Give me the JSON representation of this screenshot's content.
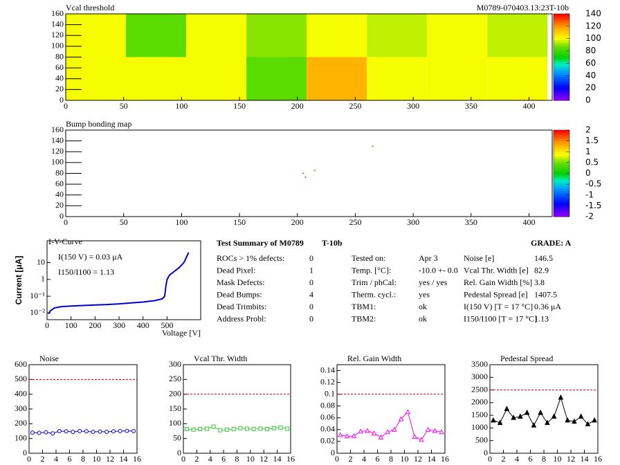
{
  "chart_data": [
    {
      "type": "heatmap",
      "title": "Vcal threshold",
      "subtitle": "M0789-070403.13:23T-10b",
      "x_edges": [
        0,
        52,
        104,
        156,
        208,
        260,
        312,
        364,
        416
      ],
      "y_edges": [
        0,
        80,
        160
      ],
      "values": [
        [
          100,
          100,
          100,
          85,
          115,
          100,
          100,
          100
        ],
        [
          100,
          85,
          100,
          90,
          100,
          95,
          100,
          95
        ]
      ],
      "xlim": [
        0,
        420
      ],
      "ylim": [
        0,
        160
      ],
      "xticks": [
        0,
        50,
        100,
        150,
        200,
        250,
        300,
        350,
        400
      ],
      "yticks": [
        0,
        20,
        40,
        60,
        80,
        100,
        120,
        140,
        160
      ],
      "zlim": [
        0,
        140
      ],
      "zticks": [
        0,
        20,
        40,
        60,
        80,
        100,
        120,
        140
      ]
    },
    {
      "type": "scatter",
      "title": "Bump bonding map",
      "x": [
        205,
        207,
        215,
        265
      ],
      "values": [
        80,
        73,
        85,
        130
      ],
      "color": "#33cc33",
      "xlim": [
        0,
        420
      ],
      "ylim": [
        0,
        160
      ],
      "xticks": [
        0,
        50,
        100,
        150,
        200,
        250,
        300,
        350,
        400
      ],
      "yticks": [
        0,
        20,
        40,
        60,
        80,
        100,
        120,
        140,
        160
      ],
      "zlim": [
        -2,
        2
      ],
      "zticks": [
        -2,
        -1.5,
        -1,
        -0.5,
        0,
        0.5,
        1,
        1.5,
        2
      ]
    },
    {
      "type": "line",
      "title": "I-V-Curve",
      "log_y": true,
      "color": "#0000cc",
      "xlabel": "Voltage [V]",
      "ylabel": "Current [μA]",
      "annotations": [
        "I(150 V) = 0.03 μA",
        "I150/I100 =  1.13"
      ],
      "x": [
        5,
        15,
        30,
        60,
        100,
        150,
        200,
        250,
        300,
        350,
        400,
        450,
        480,
        490,
        495,
        500,
        510,
        530,
        550,
        570,
        590
      ],
      "values": [
        0.009,
        0.014,
        0.02,
        0.024,
        0.026,
        0.028,
        0.03,
        0.032,
        0.035,
        0.04,
        0.045,
        0.055,
        0.07,
        0.1,
        0.4,
        1.0,
        1.8,
        3.0,
        5.0,
        10.0,
        40.0
      ],
      "xlim": [
        0,
        640
      ],
      "ylim": [
        0.004,
        200
      ],
      "xticks": [
        0,
        100,
        200,
        300,
        400,
        500
      ],
      "yticks": [
        {
          "value": 0.01,
          "label": "10⁻²"
        },
        {
          "value": 0.1,
          "label": "10⁻¹"
        },
        1,
        10
      ]
    },
    {
      "type": "line",
      "title": "Noise",
      "marker": "circle",
      "color": "#0000cc",
      "threshold": 500,
      "x": [
        0.5,
        1.5,
        2.5,
        3.5,
        4.5,
        5.5,
        6.5,
        7.5,
        8.5,
        9.5,
        10.5,
        11.5,
        12.5,
        13.5,
        14.5,
        15.5
      ],
      "values": [
        140,
        138,
        142,
        135,
        150,
        148,
        145,
        150,
        148,
        145,
        147,
        145,
        148,
        150,
        152,
        150
      ],
      "xlim": [
        0,
        16
      ],
      "ylim": [
        0,
        600
      ],
      "xticks": [
        0,
        2,
        4,
        6,
        8,
        10,
        12,
        14,
        16
      ],
      "yticks": [
        0,
        100,
        200,
        300,
        400,
        500,
        600
      ]
    },
    {
      "type": "line",
      "title": "Vcal Thr. Width",
      "marker": "square",
      "color": "#33cc33",
      "threshold": 200,
      "x": [
        0.5,
        1.5,
        2.5,
        3.5,
        4.5,
        5.5,
        6.5,
        7.5,
        8.5,
        9.5,
        10.5,
        11.5,
        12.5,
        13.5,
        14.5,
        15.5
      ],
      "values": [
        82,
        80,
        82,
        83,
        90,
        78,
        80,
        82,
        85,
        83,
        82,
        83,
        82,
        85,
        87,
        83
      ],
      "xlim": [
        0,
        16
      ],
      "ylim": [
        0,
        300
      ],
      "xticks": [
        0,
        2,
        4,
        6,
        8,
        10,
        12,
        14,
        16
      ],
      "yticks": [
        0,
        50,
        100,
        150,
        200,
        250,
        300
      ]
    },
    {
      "type": "line",
      "title": "Rel. Gain Width",
      "marker": "triangle",
      "color": "#ff00ff",
      "threshold": 0.1,
      "x": [
        0.5,
        1.5,
        2.5,
        3.5,
        4.5,
        5.5,
        6.5,
        7.5,
        8.5,
        9.5,
        10.5,
        11.5,
        12.5,
        13.5,
        14.5,
        15.5
      ],
      "values": [
        0.031,
        0.029,
        0.029,
        0.037,
        0.038,
        0.034,
        0.027,
        0.036,
        0.04,
        0.058,
        0.07,
        0.028,
        0.023,
        0.04,
        0.038,
        0.036
      ],
      "xlim": [
        0,
        16
      ],
      "ylim": [
        0,
        0.15
      ],
      "xticks": [
        0,
        2,
        4,
        6,
        8,
        10,
        12,
        14,
        16
      ],
      "yticks": [
        0,
        0.02,
        0.04,
        0.06,
        0.08,
        0.1,
        0.12,
        0.14
      ]
    },
    {
      "type": "line",
      "title": "Pedestal Spread",
      "marker": "star",
      "color": "#000000",
      "threshold": 2500,
      "x": [
        0.5,
        1.5,
        2.5,
        3.5,
        4.5,
        5.5,
        6.5,
        7.5,
        8.5,
        9.5,
        10.5,
        11.5,
        12.5,
        13.5,
        14.5,
        15.5
      ],
      "values": [
        1300,
        1200,
        1750,
        1400,
        1450,
        1600,
        1100,
        1600,
        1200,
        1450,
        2200,
        1300,
        1250,
        1450,
        1150,
        1300
      ],
      "xlim": [
        0,
        16
      ],
      "ylim": [
        0,
        3500
      ],
      "xticks": [
        0,
        2,
        4,
        6,
        8,
        10,
        12,
        14,
        16
      ],
      "yticks": [
        0,
        500,
        1000,
        1500,
        2000,
        2500,
        3000,
        3500
      ]
    }
  ],
  "summary": {
    "title": "Test Summary of M0789",
    "module": "T-10b",
    "grade": "GRADE:  A",
    "defects": [
      [
        "ROCs > 1% defects:",
        0
      ],
      [
        "Dead Pixel:",
        1
      ],
      [
        "Mask Defects:",
        0
      ],
      [
        "Dead Bumps:",
        4
      ],
      [
        "Dead Trimbits:",
        0
      ],
      [
        "Address Probl:",
        0
      ]
    ],
    "conditions": [
      [
        "Tested on:",
        "Apr 3"
      ],
      [
        "Temp. [°C]:",
        "-10.0 +- 0.0"
      ],
      [
        "Trim / phCal:",
        "yes / yes"
      ],
      [
        "Therm. cycl.:",
        "yes"
      ],
      [
        "TBM1:",
        "ok"
      ],
      [
        "TBM2:",
        "ok"
      ]
    ],
    "results": [
      [
        "Noise [e]",
        146.5
      ],
      [
        "Vcal Thr. Width [e]",
        82.9
      ],
      [
        "Rel. Gain Width [%]",
        3.8
      ],
      [
        "Pedestal Spread [e]",
        1407.5
      ],
      [
        "I(150 V) [T = 17 °C]",
        "0.36 μA"
      ],
      [
        "I150/I100  [T = 17 °C]",
        1.13
      ]
    ]
  }
}
